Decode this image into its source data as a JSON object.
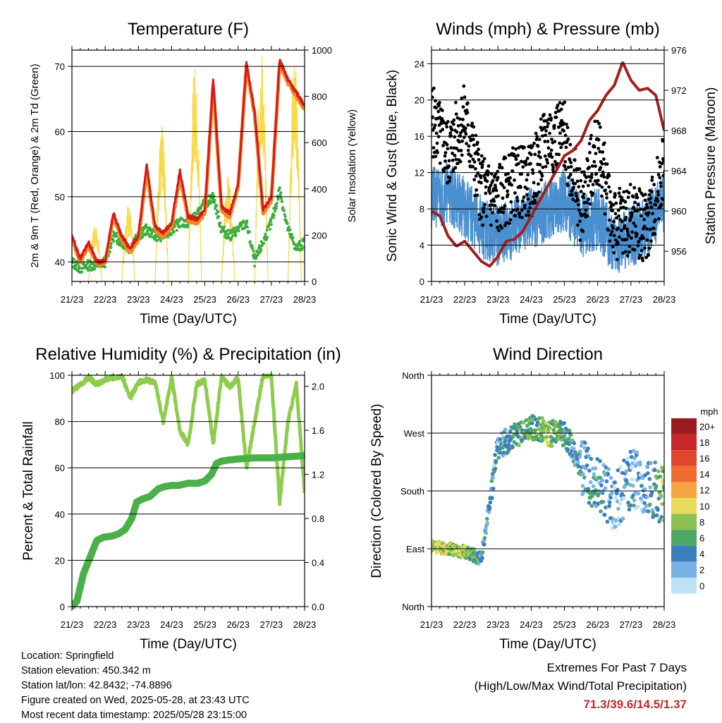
{
  "colors": {
    "temp_2m": "#d7191c",
    "temp_9m": "#f08a24",
    "dewpoint": "#3cae3c",
    "solar": "#f7d94c",
    "wind": "#4a90d0",
    "gust": "#000000",
    "pressure": "#a31f1f",
    "rh": "#8fcc4e",
    "precip": "#4ab04a",
    "extremes_text": "#c0282d"
  },
  "x_ticks": [
    "21/23",
    "22/23",
    "23/23",
    "24/23",
    "25/23",
    "26/23",
    "27/23",
    "28/23"
  ],
  "charts": {
    "temperature": {
      "title": "Temperature (F)",
      "xlabel": "Time (Day/UTC)",
      "ylabel_left": "2m & 9m T (Red, Orange) & 2m Td (Green)",
      "ylabel_right": "Solar Insolation (Yellow)",
      "left_ticks": [
        "40",
        "50",
        "60",
        "70"
      ],
      "right_ticks": [
        "0",
        "200",
        "400",
        "600",
        "800",
        "1000"
      ]
    },
    "winds": {
      "title": "Winds (mph) & Pressure (mb)",
      "xlabel": "Time (Day/UTC)",
      "ylabel_left": "Sonic Wind & Gust (Blue, Black)",
      "ylabel_right": "Station Pressure (Maroon)",
      "left_ticks": [
        "0",
        "4",
        "8",
        "12",
        "16",
        "20",
        "24"
      ],
      "right_ticks": [
        "956",
        "960",
        "964",
        "968",
        "972",
        "976"
      ]
    },
    "humidity": {
      "title": "Relative Humidity (%) & Precipitation (in)",
      "xlabel": "Time (Day/UTC)",
      "ylabel_left": "Percent & Total Rainfall",
      "left_ticks": [
        "0",
        "20",
        "40",
        "60",
        "80",
        "100"
      ],
      "right_ticks": [
        "0.0",
        "0.4",
        "0.8",
        "1.2",
        "1.6",
        "2.0"
      ]
    },
    "direction": {
      "title": "Wind Direction",
      "xlabel": "Time (Day/UTC)",
      "ylabel_left": "Direction (Colored By Speed)",
      "left_ticks": [
        "North",
        "East",
        "South",
        "West",
        "North"
      ],
      "legend_title": "mph",
      "legend_labels": [
        "20+",
        "18",
        "16",
        "14",
        "12",
        "10",
        "8",
        "6",
        "4",
        "2",
        "0"
      ],
      "legend_colors": [
        "#9b1b1e",
        "#c9262b",
        "#e2452e",
        "#ef6d2f",
        "#f7a542",
        "#e7dc5a",
        "#8cc152",
        "#4da865",
        "#3b7fbf",
        "#79b3e3",
        "#bfe1f5"
      ]
    }
  },
  "chart_data": [
    {
      "type": "line",
      "title": "Temperature (F)",
      "xlabel": "Time (Day/UTC)",
      "ylabel": "2m & 9m T (Red, Orange) & 2m Td (Green)",
      "y2label": "Solar Insolation (Yellow)",
      "categories": [
        "21/23",
        "22/23",
        "23/23",
        "24/23",
        "25/23",
        "26/23",
        "27/23",
        "28/23"
      ],
      "ylim": [
        37,
        72.5
      ],
      "y2lim": [
        0,
        1000
      ],
      "series": [
        {
          "name": "2m T",
          "x": [
            0,
            0.25,
            0.5,
            0.75,
            1,
            1.25,
            1.5,
            1.75,
            2,
            2.25,
            2.5,
            2.75,
            3,
            3.25,
            3.5,
            3.75,
            4,
            4.25,
            4.5,
            4.75,
            5,
            5.25,
            5.5,
            5.75,
            6,
            6.25,
            6.5,
            6.75,
            7
          ],
          "values": [
            44,
            40.5,
            43,
            40,
            40,
            47.5,
            44,
            42,
            44,
            55,
            45.5,
            44.5,
            46,
            54,
            47,
            46.5,
            48,
            68,
            48.5,
            47.5,
            52,
            70.5,
            63,
            48,
            50,
            71,
            68,
            66,
            64
          ]
        },
        {
          "name": "9m T",
          "x": [
            0,
            0.25,
            0.5,
            0.75,
            1,
            1.25,
            1.5,
            1.75,
            2,
            2.25,
            2.5,
            2.75,
            3,
            3.25,
            3.5,
            3.75,
            4,
            4.25,
            4.5,
            4.75,
            5,
            5.25,
            5.5,
            5.75,
            6,
            6.25,
            6.5,
            6.75,
            7
          ],
          "values": [
            43.5,
            40,
            42.5,
            39.8,
            39.8,
            47,
            43.5,
            41.5,
            43.5,
            54,
            45,
            44,
            45.5,
            53,
            46.5,
            46,
            47.5,
            67,
            48,
            47,
            51.5,
            70,
            62.5,
            47.5,
            49.5,
            70.5,
            67.5,
            65.5,
            63.5
          ]
        },
        {
          "name": "2m Td",
          "x": [
            0,
            0.25,
            0.5,
            0.75,
            1,
            1.25,
            1.5,
            1.75,
            2,
            2.25,
            2.5,
            2.75,
            3,
            3.25,
            3.5,
            3.75,
            4,
            4.25,
            4.5,
            4.75,
            5,
            5.25,
            5.5,
            5.75,
            6,
            6.25,
            6.5,
            6.75,
            7
          ],
          "values": [
            40,
            39,
            39.5,
            39.5,
            40,
            44,
            43,
            42,
            44,
            45,
            44,
            44,
            45,
            46,
            46,
            47,
            49,
            50,
            45,
            44,
            45,
            46,
            40,
            43,
            46,
            51,
            45,
            42,
            43
          ]
        },
        {
          "name": "Solar Insolation",
          "axis": "right",
          "x": [
            0.08,
            0.3,
            0.5,
            0.72,
            0.9,
            1.08,
            1.3,
            1.5,
            1.72,
            1.9,
            2.08,
            2.3,
            2.5,
            2.72,
            2.9,
            3.08,
            3.3,
            3.5,
            3.72,
            3.9,
            4.08,
            4.3,
            4.5,
            4.72,
            4.9,
            5.08,
            5.3,
            5.5,
            5.72,
            5.9,
            6.08,
            6.3,
            6.5,
            6.72,
            6.9
          ],
          "values": [
            0,
            250,
            0,
            0,
            0,
            0,
            340,
            0,
            0,
            0,
            0,
            690,
            0,
            0,
            0,
            0,
            940,
            0,
            0,
            0,
            0,
            460,
            0,
            0,
            0,
            0,
            1000,
            0,
            0,
            0,
            0,
            970,
            0,
            0,
            0
          ]
        }
      ]
    },
    {
      "type": "scatter",
      "title": "Winds (mph) & Pressure (mb)",
      "xlabel": "Time (Day/UTC)",
      "ylabel": "Sonic Wind & Gust (Blue, Black)",
      "y2label": "Station Pressure (Maroon)",
      "categories": [
        "21/23",
        "22/23",
        "23/23",
        "24/23",
        "25/23",
        "26/23",
        "27/23",
        "28/23"
      ],
      "ylim": [
        0,
        25.5
      ],
      "y2lim": [
        953,
        976
      ],
      "series": [
        {
          "name": "Sonic Wind",
          "x": [
            0,
            0.5,
            1,
            1.5,
            2,
            2.5,
            3,
            3.5,
            4,
            4.5,
            5,
            5.5,
            6,
            6.5,
            7
          ],
          "values": [
            9,
            10,
            8,
            6,
            5,
            6,
            7,
            8,
            9,
            6,
            7,
            4,
            5,
            6,
            9
          ]
        },
        {
          "name": "Gust",
          "x": [
            0,
            0.5,
            1,
            1.5,
            2,
            2.5,
            3,
            3.5,
            4,
            4.5,
            5,
            5.5,
            6,
            6.5,
            7
          ],
          "values": [
            18,
            14,
            18,
            10,
            9,
            11,
            11,
            16,
            16,
            8,
            15,
            6,
            7,
            6,
            13
          ]
        },
        {
          "name": "Station Pressure",
          "axis": "right",
          "x": [
            0,
            0.25,
            0.5,
            0.75,
            1,
            1.25,
            1.5,
            1.75,
            2,
            2.25,
            2.5,
            2.75,
            3,
            3.25,
            3.5,
            3.75,
            4,
            4.25,
            4.5,
            4.75,
            5,
            5.25,
            5.5,
            5.75,
            6,
            6.25,
            6.5,
            6.75,
            7
          ],
          "values": [
            960,
            959.5,
            957.5,
            956.5,
            957,
            956,
            955,
            954.5,
            955.5,
            957,
            957.2,
            958,
            959.5,
            961,
            962.5,
            964,
            965.5,
            966,
            967,
            969,
            970,
            971.5,
            972.5,
            974.8,
            973,
            972,
            972.2,
            971.5,
            968
          ]
        }
      ]
    },
    {
      "type": "line",
      "title": "Relative Humidity (%) & Precipitation (in)",
      "xlabel": "Time (Day/UTC)",
      "ylabel": "Percent & Total Rainfall",
      "categories": [
        "21/23",
        "22/23",
        "23/23",
        "24/23",
        "25/23",
        "26/23",
        "27/23",
        "28/23"
      ],
      "ylim": [
        0,
        100
      ],
      "y2lim": [
        0,
        2.1
      ],
      "series": [
        {
          "name": "RH",
          "x": [
            0,
            0.25,
            0.5,
            0.75,
            1,
            1.25,
            1.5,
            1.75,
            2,
            2.25,
            2.5,
            2.75,
            3,
            3.25,
            3.5,
            3.75,
            4,
            4.25,
            4.5,
            4.75,
            5,
            5.25,
            5.5,
            5.75,
            6,
            6.25,
            6.5,
            6.75,
            7
          ],
          "values": [
            93,
            96,
            99,
            96,
            98,
            99,
            100,
            90,
            97,
            98,
            97,
            80,
            99,
            76,
            70,
            96,
            98,
            70,
            99,
            95,
            99,
            60,
            80,
            100,
            100,
            45,
            80,
            96,
            50
          ]
        },
        {
          "name": "Total Rainfall",
          "axis": "right",
          "x": [
            0,
            0.15,
            0.35,
            0.55,
            0.75,
            0.95,
            1.2,
            1.4,
            1.6,
            1.8,
            1.95,
            2.15,
            2.35,
            2.6,
            2.8,
            3.0,
            3.2,
            3.5,
            3.8,
            4.0,
            4.2,
            4.35,
            4.5,
            4.7,
            5.0,
            5.5,
            6.0,
            6.5,
            7
          ],
          "values": [
            0,
            0.05,
            0.3,
            0.45,
            0.6,
            0.63,
            0.64,
            0.66,
            0.7,
            0.8,
            0.95,
            0.98,
            1.0,
            1.07,
            1.09,
            1.1,
            1.1,
            1.12,
            1.12,
            1.14,
            1.2,
            1.3,
            1.32,
            1.33,
            1.34,
            1.35,
            1.35,
            1.36,
            1.37
          ]
        }
      ]
    },
    {
      "type": "scatter",
      "title": "Wind Direction",
      "xlabel": "Time (Day/UTC)",
      "ylabel": "Direction (Colored By Speed)",
      "categories": [
        "21/23",
        "22/23",
        "23/23",
        "24/23",
        "25/23",
        "26/23",
        "27/23",
        "28/23"
      ],
      "y_ticks": [
        "North",
        "East",
        "South",
        "West",
        "North"
      ],
      "ylim": [
        0,
        360
      ],
      "legend": {
        "title": "mph",
        "labels": [
          "20+",
          "18",
          "16",
          "14",
          "12",
          "10",
          "8",
          "6",
          "4",
          "2",
          "0"
        ],
        "placement": "right"
      },
      "series": [
        {
          "name": "Direction",
          "x": [
            0,
            0.5,
            1,
            1.5,
            2,
            2.5,
            3,
            3.5,
            4,
            4.5,
            5,
            5.5,
            6,
            6.5,
            7
          ],
          "values": [
            95,
            90,
            85,
            75,
            250,
            265,
            280,
            270,
            270,
            220,
            190,
            160,
            200,
            190,
            170
          ],
          "speeds": [
            9,
            9,
            8,
            4,
            3,
            5,
            6,
            8,
            5,
            3,
            4,
            2,
            3,
            2,
            8
          ]
        }
      ]
    }
  ],
  "info": {
    "location": "Location: Springfield",
    "elevation": "Station elevation: 450.342 m",
    "latlon": "Station lat/lon: 42.8432; -74.8896",
    "created": "Figure created on Wed, 2025-05-28, at 23:43 UTC",
    "recent": "Most recent data timestamp: 2025/05/28 23:15:00"
  },
  "extremes": {
    "line1": "Extremes For Past 7 Days",
    "line2": "(High/Low/Max Wind/Total Precipitation)",
    "values": "71.3/39.6/14.5/1.37"
  }
}
